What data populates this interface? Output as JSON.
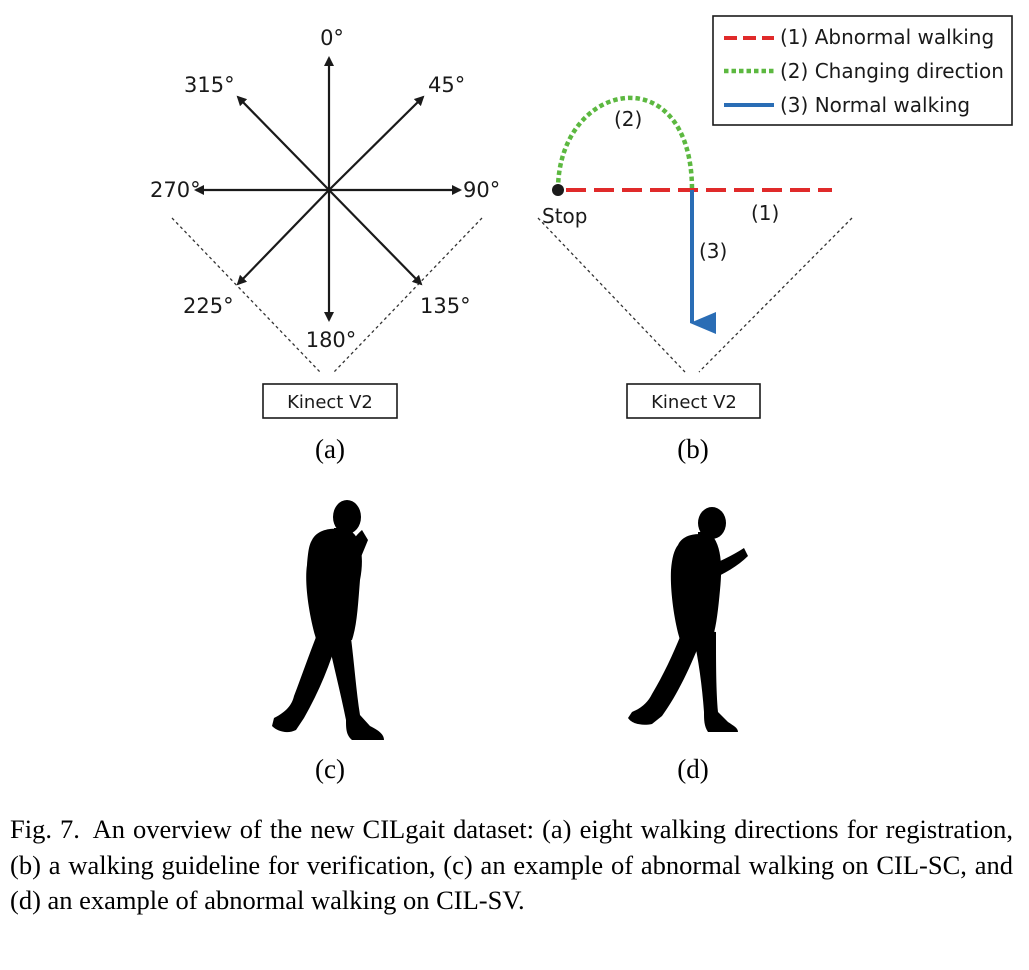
{
  "panel_a": {
    "directions": [
      "0°",
      "45°",
      "90°",
      "135°",
      "180°",
      "225°",
      "270°",
      "315°"
    ],
    "sensor_label": "Kinect V2",
    "sublabel": "(a)"
  },
  "panel_b": {
    "legend": [
      {
        "label": "(1) Abnormal walking",
        "color": "#e02a2a",
        "style": "dashed"
      },
      {
        "label": "(2) Changing direction",
        "color": "#5cb840",
        "style": "dotted"
      },
      {
        "label": "(3) Normal walking",
        "color": "#2a6db5",
        "style": "solid"
      }
    ],
    "path_labels": {
      "abnormal": "(1)",
      "changing": "(2)",
      "normal": "(3)"
    },
    "stop_label": "Stop",
    "sensor_label": "Kinect V2",
    "sublabel": "(b)"
  },
  "panel_c": {
    "sublabel": "(c)",
    "subject": "person walking while talking on phone"
  },
  "panel_d": {
    "sublabel": "(d)",
    "subject": "person walking while looking at phone"
  },
  "caption": {
    "label": "Fig. 7.",
    "text": "An overview of the new CILgait dataset: (a) eight walking directions for registration, (b) a walking guideline for verification, (c) an example of abnormal walking on CIL-SC, and (d) an example of abnormal walking on CIL-SV."
  }
}
